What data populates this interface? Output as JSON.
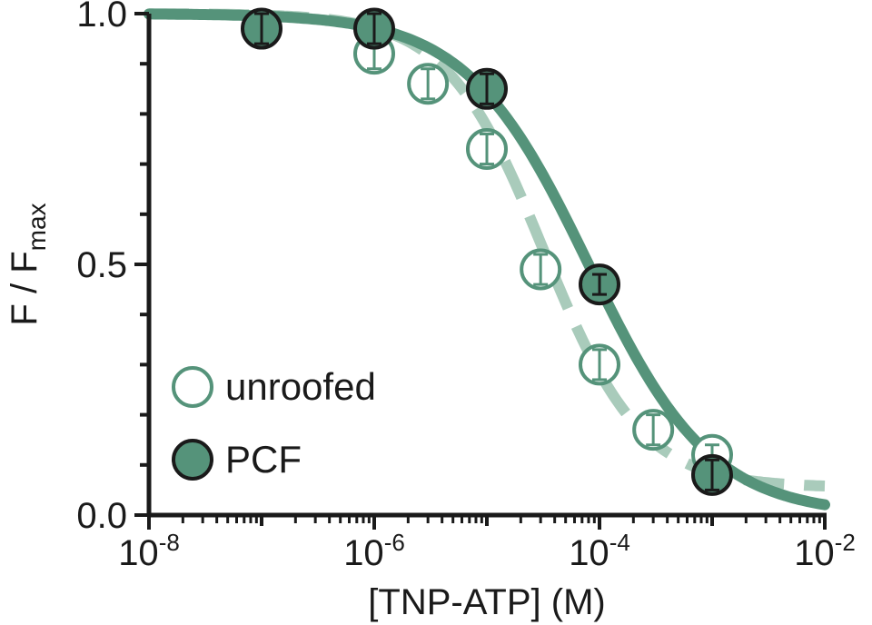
{
  "chart_data": {
    "type": "scatter",
    "x_scale": "log",
    "xlim": [
      1e-08,
      0.01
    ],
    "ylim": [
      0,
      1
    ],
    "xlabel": "[TNP-ATP] (M)",
    "ylabel": {
      "main": "F / F",
      "sub": "max"
    },
    "x_ticks": [
      {
        "base": "10",
        "exp": "-8"
      },
      {
        "base": "10",
        "exp": "-6"
      },
      {
        "base": "10",
        "exp": "-4"
      },
      {
        "base": "10",
        "exp": "-2"
      }
    ],
    "y_ticks": [
      "0.0",
      "0.5",
      "1.0"
    ],
    "legend": {
      "position": "bottom-left"
    },
    "colors": {
      "accent": "#55937a",
      "accent_light": "#a9cbbb",
      "edge": "#1a1a1a",
      "axis": "#1a1a1a"
    },
    "series": [
      {
        "name": "unroofed",
        "marker": "open-circle",
        "fit": "dashed",
        "points": [
          {
            "x": 1e-06,
            "y": 0.92,
            "err": 0.03
          },
          {
            "x": 3e-06,
            "y": 0.86,
            "err": 0.03
          },
          {
            "x": 1e-05,
            "y": 0.73,
            "err": 0.03
          },
          {
            "x": 3e-05,
            "y": 0.49,
            "err": 0.03
          },
          {
            "x": 0.0001,
            "y": 0.3,
            "err": 0.03
          },
          {
            "x": 0.0003,
            "y": 0.17,
            "err": 0.03
          },
          {
            "x": 0.001,
            "y": 0.12,
            "err": 0.02
          }
        ],
        "fit_params": {
          "ic50": 3.2e-05,
          "hill": 1.0,
          "bottom": 0.055,
          "top": 1.0
        }
      },
      {
        "name": "PCF",
        "marker": "filled-circle",
        "fit": "solid",
        "points": [
          {
            "x": 1e-07,
            "y": 0.97,
            "err": 0.03
          },
          {
            "x": 1e-06,
            "y": 0.97,
            "err": 0.03
          },
          {
            "x": 1e-05,
            "y": 0.85,
            "err": 0.03
          },
          {
            "x": 0.0001,
            "y": 0.46,
            "err": 0.02
          },
          {
            "x": 0.001,
            "y": 0.08,
            "err": 0.03
          }
        ],
        "fit_params": {
          "ic50": 8e-05,
          "hill": 0.8,
          "bottom": 0.0,
          "top": 1.0
        }
      }
    ]
  }
}
